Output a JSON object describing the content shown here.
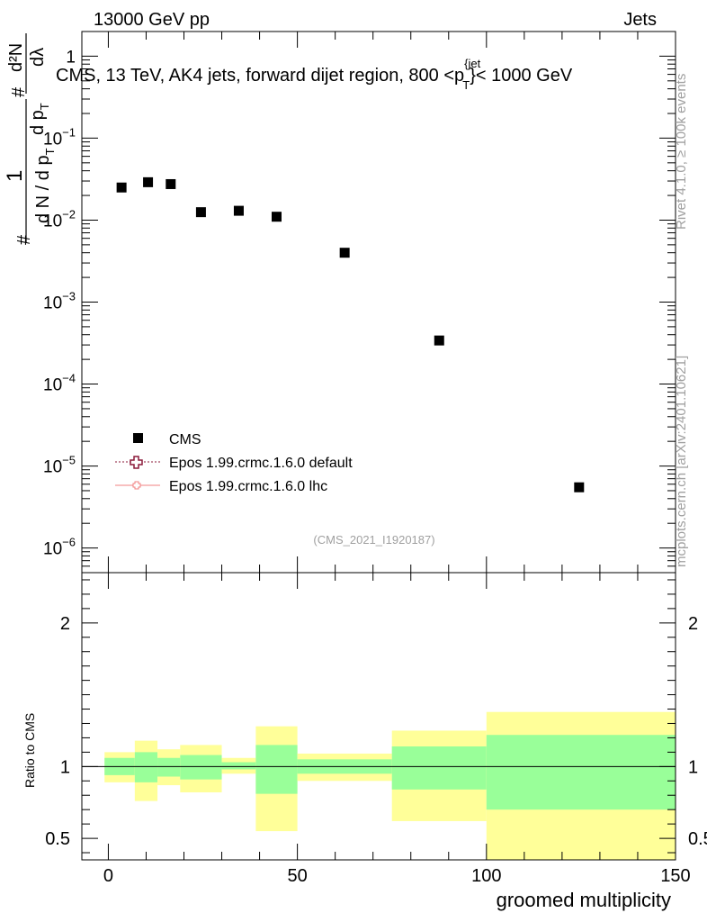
{
  "header": {
    "energy_label": "13000 GeV pp",
    "category_label": "Jets"
  },
  "side_labels": {
    "rivet": "Rivet 4.1.0, ≥ 100k events",
    "mcplots": "mcplots.cern.ch [arXiv:2401.10621]"
  },
  "axis_labels": {
    "y_main_numer_1": "1",
    "y_main_denom_1": "d N / d p",
    "y_main_denom_2": "T",
    "y_main_numer_2": "d²N",
    "y_main_denom_3": "d p",
    "y_main_denom_4": "T",
    "y_main_denom_5": "dλ",
    "hash": "#",
    "y_ratio": "Ratio to CMS",
    "x": "groomed multiplicity"
  },
  "colors": {
    "data": "#000000",
    "mc_default": "#8b1a3a",
    "mc_lhc": "#f08080",
    "band_inner": "#99ff99",
    "band_outer": "#ffff99"
  },
  "chart_data": [
    {
      "type": "scatter",
      "title": "CMS, 13 TeV, AK4 jets, forward dijet region, 800 <p",
      "title_sup": "{jet",
      "title_sub": "T",
      "title_end": "}< 1000 GeV",
      "watermark": "(CMS_2021_I1920187)",
      "y_scale": "log",
      "ylim": [
        5e-07,
        2
      ],
      "xlim": [
        -7,
        150
      ],
      "y_ticks": [
        1,
        0.1,
        0.01,
        0.001,
        0.0001,
        1e-05,
        1e-06
      ],
      "y_tick_labels": [
        {
          "base": "1",
          "exp": ""
        },
        {
          "base": "10",
          "exp": "−1"
        },
        {
          "base": "10",
          "exp": "−2"
        },
        {
          "base": "10",
          "exp": "−3"
        },
        {
          "base": "10",
          "exp": "−4"
        },
        {
          "base": "10",
          "exp": "−5"
        },
        {
          "base": "10",
          "exp": "−6"
        }
      ],
      "series": [
        {
          "name": "CMS",
          "marker": "square",
          "x": [
            3.5,
            10.5,
            16.5,
            24.5,
            34.5,
            44.5,
            62.5,
            87.5,
            124.5
          ],
          "y": [
            0.025,
            0.029,
            0.0275,
            0.0125,
            0.013,
            0.011,
            0.004,
            0.00034,
            5.5e-06
          ]
        }
      ],
      "legend": [
        {
          "label": "CMS"
        },
        {
          "label": "Epos 1.99.crmc.1.6.0 default"
        },
        {
          "label": "Epos 1.99.crmc.1.6.0 lhc"
        }
      ],
      "legend_position": "bottom-left"
    },
    {
      "type": "area",
      "ylabel": "Ratio to CMS",
      "xlabel": "groomed multiplicity",
      "ylim": [
        0.35,
        2.35
      ],
      "xlim": [
        -7,
        150
      ],
      "y_ticks": [
        0.5,
        1,
        2
      ],
      "y_tick_labels": [
        "0.5",
        "1",
        "2"
      ],
      "x_ticks": [
        0,
        50,
        100,
        150
      ],
      "x_tick_labels": [
        "0",
        "50",
        "100",
        "150"
      ],
      "reference_line": 1,
      "bins": [
        {
          "lo": -1,
          "hi": 7,
          "inner": [
            0.94,
            1.06
          ],
          "outer": [
            0.89,
            1.1
          ]
        },
        {
          "lo": 7,
          "hi": 13,
          "inner": [
            0.89,
            1.1
          ],
          "outer": [
            0.76,
            1.18
          ]
        },
        {
          "lo": 13,
          "hi": 19,
          "inner": [
            0.93,
            1.06
          ],
          "outer": [
            0.87,
            1.12
          ]
        },
        {
          "lo": 19,
          "hi": 30,
          "inner": [
            0.91,
            1.08
          ],
          "outer": [
            0.82,
            1.15
          ]
        },
        {
          "lo": 30,
          "hi": 39,
          "inner": [
            0.98,
            1.03
          ],
          "outer": [
            0.95,
            1.06
          ]
        },
        {
          "lo": 39,
          "hi": 50,
          "inner": [
            0.81,
            1.15
          ],
          "outer": [
            0.55,
            1.28
          ]
        },
        {
          "lo": 50,
          "hi": 75,
          "inner": [
            0.95,
            1.05
          ],
          "outer": [
            0.9,
            1.09
          ]
        },
        {
          "lo": 75,
          "hi": 100,
          "inner": [
            0.84,
            1.14
          ],
          "outer": [
            0.62,
            1.25
          ]
        },
        {
          "lo": 100,
          "hi": 150,
          "inner": [
            0.7,
            1.22
          ],
          "outer": [
            0.32,
            1.38
          ]
        }
      ]
    }
  ]
}
